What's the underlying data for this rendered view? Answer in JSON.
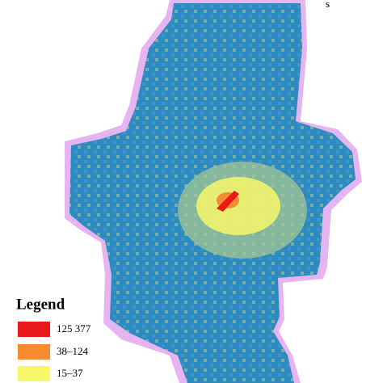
{
  "map": {
    "corner_text": "s",
    "legend": {
      "title": "Legend",
      "items": [
        {
          "label": "125 377",
          "color": "#e81a1a"
        },
        {
          "label": "38–124",
          "color": "#f68b30"
        },
        {
          "label": "15–37",
          "color": "#f7f768"
        }
      ]
    }
  }
}
